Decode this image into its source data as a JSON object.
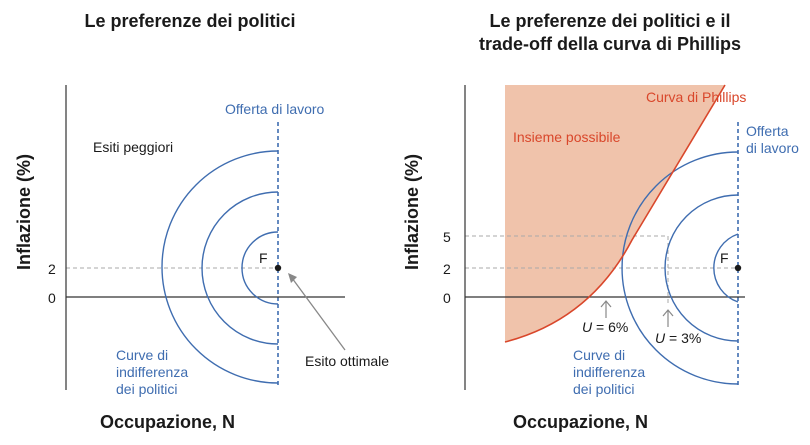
{
  "left_panel": {
    "title": "Le preferenze dei politici",
    "ylabel": "Inflazione (%)",
    "xlabel": "Occupazione, N",
    "ticks": [
      "2",
      "0"
    ],
    "labor_supply_label": "Offerta di lavoro",
    "worse_outcomes_label": "Esiti peggiori",
    "point_label": "F",
    "optimal_label": "Esito ottimale",
    "curves_label_1": "Curve di",
    "curves_label_2": "indifferenza",
    "curves_label_3": "dei politici"
  },
  "right_panel": {
    "title_line1": "Le preferenze dei politici e il",
    "title_line2": "trade-off della curva di Phillips",
    "ylabel": "Inflazione (%)",
    "xlabel": "Occupazione, N",
    "ticks": [
      "5",
      "2",
      "0"
    ],
    "phillips_label": "Curva di Phillips",
    "feasible_label": "Insieme possibile",
    "labor_supply_label_1": "Offerta",
    "labor_supply_label_2": "di lavoro",
    "point_label": "F",
    "u6_label_var": "U",
    "u6_label_val": " = 6%",
    "u3_label_var": "U",
    "u3_label_val": " = 3%",
    "curves_label_1": "Curve di",
    "curves_label_2": "indifferenza",
    "curves_label_3": "dei politici"
  },
  "colors": {
    "blue": "#3f6db0",
    "red": "#d9472b",
    "feasible_fill": "#f0c3ab",
    "axis": "#333333",
    "dashed": "#aaaaaa",
    "text": "#1a1a1a"
  }
}
